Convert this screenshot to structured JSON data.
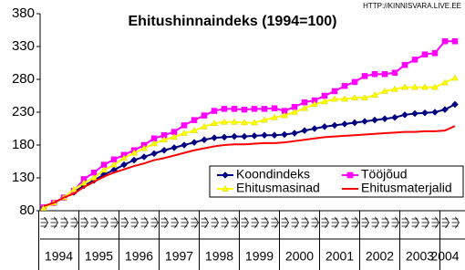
{
  "chart_data": {
    "type": "line",
    "title": "Ehitushinnaindeks (1994=100)",
    "source": "HTTP://KINNISVARA.LIVE.EE",
    "categories": [
      "1994",
      null,
      null,
      null,
      "1995",
      null,
      null,
      null,
      "1996",
      null,
      null,
      null,
      "1997",
      null,
      null,
      null,
      "1998",
      null,
      null,
      null,
      "1999",
      null,
      null,
      null,
      "2000",
      null,
      null,
      null,
      "2001",
      null,
      null,
      null,
      "2002",
      null,
      null,
      null,
      "2003",
      null,
      null,
      null,
      "2004",
      null
    ],
    "ylim": [
      80,
      380
    ],
    "yticks": [
      80,
      130,
      180,
      230,
      280,
      330,
      380
    ],
    "grid": false,
    "legend": "bottom-right",
    "series": [
      {
        "name": "Koondindeks",
        "color": "#000080",
        "marker": "diamond",
        "values": [
          85,
          92,
          100,
          108,
          118,
          126,
          135,
          142,
          150,
          157,
          162,
          167,
          172,
          176,
          180,
          184,
          188,
          191,
          192,
          193,
          193,
          194,
          195,
          195,
          196,
          198,
          202,
          205,
          208,
          210,
          212,
          214,
          216,
          218,
          220,
          222,
          226,
          228,
          229,
          230,
          234,
          242
        ]
      },
      {
        "name": "Tööjõud",
        "color": "#ff00ff",
        "marker": "square",
        "values": [
          85,
          92,
          100,
          110,
          128,
          138,
          150,
          158,
          165,
          172,
          180,
          190,
          195,
          200,
          210,
          218,
          225,
          232,
          235,
          235,
          234,
          235,
          235,
          236,
          232,
          238,
          245,
          248,
          255,
          262,
          270,
          276,
          285,
          288,
          288,
          290,
          302,
          310,
          318,
          320,
          338,
          338
        ]
      },
      {
        "name": "Ehitusmasinad",
        "color": "#ffff00",
        "marker": "triangle",
        "values": [
          84,
          92,
          100,
          112,
          122,
          130,
          142,
          150,
          160,
          168,
          175,
          182,
          188,
          192,
          198,
          202,
          208,
          213,
          215,
          215,
          214,
          214,
          218,
          222,
          225,
          230,
          236,
          242,
          246,
          250,
          250,
          252,
          252,
          256,
          262,
          265,
          268,
          268,
          268,
          268,
          275,
          282
        ]
      },
      {
        "name": "Ehitusmaterjalid",
        "color": "#ff0000",
        "marker": "none",
        "values": [
          87,
          92,
          100,
          106,
          116,
          124,
          132,
          138,
          143,
          148,
          152,
          157,
          160,
          164,
          168,
          172,
          175,
          178,
          180,
          181,
          181,
          182,
          183,
          183,
          184,
          186,
          188,
          190,
          192,
          193,
          194,
          195,
          196,
          197,
          198,
          199,
          200,
          200,
          201,
          201,
          202,
          209
        ]
      }
    ]
  }
}
